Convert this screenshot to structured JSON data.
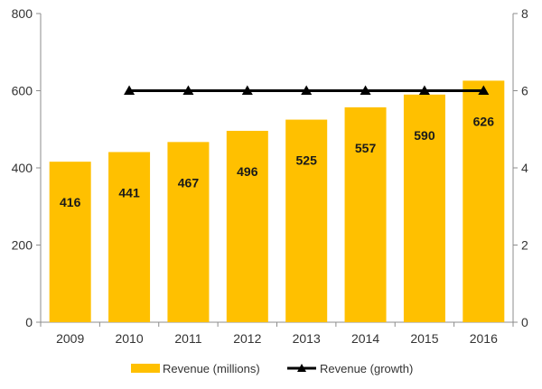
{
  "chart_data": {
    "type": "bar",
    "categories": [
      "2009",
      "2010",
      "2011",
      "2012",
      "2013",
      "2014",
      "2015",
      "2016"
    ],
    "series": [
      {
        "name": "Revenue (millions)",
        "type": "bar",
        "axis": "left",
        "color": "#FFC000",
        "values": [
          416,
          441,
          467,
          496,
          525,
          557,
          590,
          626
        ],
        "data_labels": [
          "416",
          "441",
          "467",
          "496",
          "525",
          "557",
          "590",
          "626"
        ]
      },
      {
        "name": "Revenue (growth)",
        "type": "line",
        "axis": "right",
        "color": "#000000",
        "marker": "triangle",
        "values": [
          null,
          6,
          6,
          6,
          6,
          6,
          6,
          6
        ]
      }
    ],
    "y_left": {
      "min": 0,
      "max": 800,
      "ticks": [
        "0",
        "200",
        "400",
        "600",
        "800"
      ]
    },
    "y_right": {
      "min": 0,
      "max": 8,
      "ticks": [
        "0",
        "2",
        "4",
        "6",
        "8"
      ]
    },
    "grid": false,
    "legend": "bottom"
  }
}
